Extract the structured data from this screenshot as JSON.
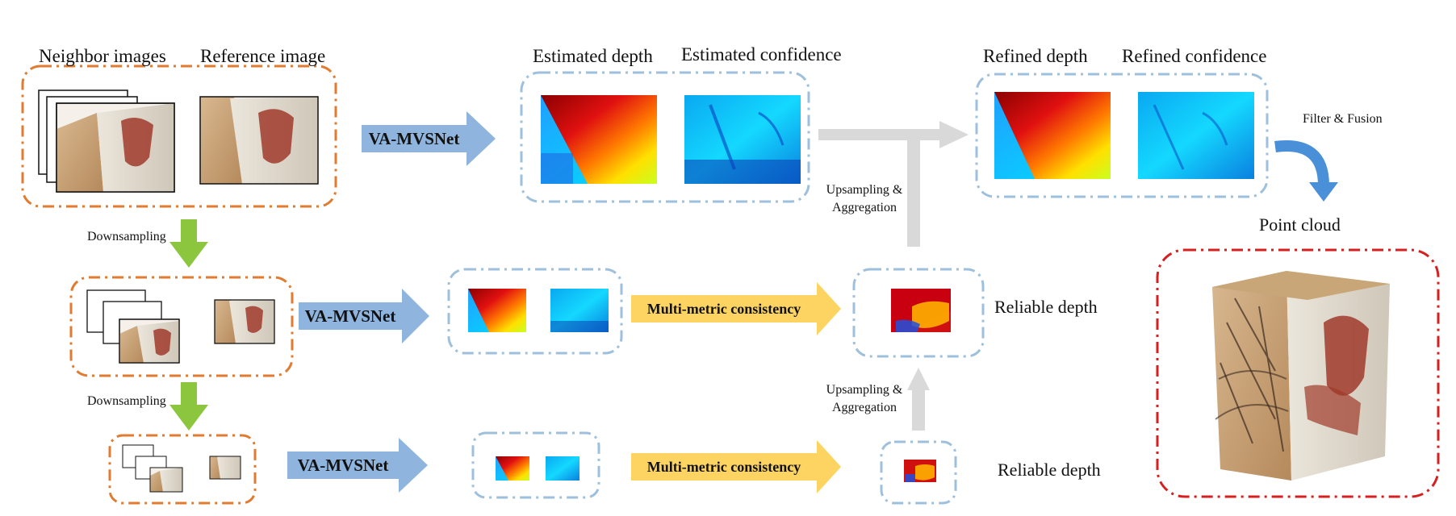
{
  "labels": {
    "neighbor_images": "Neighbor images",
    "reference_image": "Reference image",
    "estimated_depth": "Estimated depth",
    "estimated_confidence": "Estimated confidence",
    "refined_depth": "Refined depth",
    "refined_confidence": "Refined confidence",
    "filter_fusion": "Filter & Fusion",
    "point_cloud": "Point cloud",
    "downsampling_1": "Downsampling",
    "downsampling_2": "Downsampling",
    "upsampling_1_line1": "Upsampling &",
    "upsampling_1_line2": "Aggregation",
    "upsampling_2_line1": "Upsampling &",
    "upsampling_2_line2": "Aggregation",
    "reliable_depth_1": "Reliable depth",
    "reliable_depth_2": "Reliable depth"
  },
  "arrows": {
    "net_1": "VA-MVSNet",
    "net_2": "VA-MVSNet",
    "net_3": "VA-MVSNet",
    "consistency_1": "Multi-metric consistency",
    "consistency_2": "Multi-metric consistency"
  },
  "colors": {
    "orange_border": "#e07b30",
    "blue_border": "#9ec0dc",
    "red_border": "#d62020",
    "blue_arrow": "#8fb5de",
    "yellow_arrow": "#fdd462",
    "green_arrow": "#8cc63e",
    "gray_arrow": "#d9d9d9",
    "fusion_arrow": "#4a90d9"
  }
}
